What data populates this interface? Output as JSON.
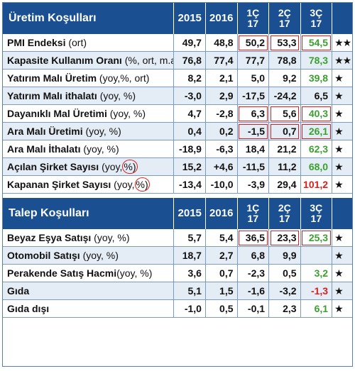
{
  "production": {
    "title": "Üretim Koşulları",
    "columns": [
      "2015",
      "2016",
      "1Ç\n17",
      "2Ç\n17",
      "3Ç\n17"
    ],
    "rows": [
      {
        "name": "PMI Endeksi",
        "unit": " (ort)",
        "v": [
          "49,7",
          "48,8",
          "50,2",
          "53,3",
          "54,5"
        ],
        "stars": "★★",
        "boxed": [
          2,
          3,
          4
        ],
        "green": 4
      },
      {
        "name": "Kapasite Kullanım Oranı",
        "unit": " (%, ort, m.a.)",
        "v": [
          "76,8",
          "77,4",
          "77,7",
          "78,8",
          "78,3"
        ],
        "stars": "★★",
        "green": 4
      },
      {
        "name": "Yatırım Malı Üretim",
        "unit": " (yoy,%, ort)",
        "v": [
          "8,2",
          "2,1",
          "5,0",
          "9,2",
          "39,8"
        ],
        "stars": "★",
        "green": 4
      },
      {
        "name": "Yatırım Malı ithalatı",
        "unit": " (yoy, %)",
        "v": [
          "-3,0",
          "2,9",
          "-17,5",
          "-24,2",
          "6,5"
        ],
        "stars": "★"
      },
      {
        "name": "Dayanıklı Mal Üretimi",
        "unit": " (yoy, %)",
        "v": [
          "4,7",
          "-2,8",
          "6,3",
          "5,6",
          "40,3"
        ],
        "stars": "★",
        "boxed": [
          2,
          3,
          4
        ],
        "green": 4
      },
      {
        "name": "Ara Malı Üretimi",
        "unit": " (yoy, %)",
        "v": [
          "0,4",
          "0,2",
          "-1,5",
          "0,7",
          "26,1"
        ],
        "stars": "★",
        "boxed": [
          2,
          3,
          4
        ],
        "green": 4
      },
      {
        "name": "Ara Malı İthalatı",
        "unit": " (yoy, %)",
        "v": [
          "-18,9",
          "-6,3",
          "18,4",
          "21,2",
          "62,3"
        ],
        "stars": "★",
        "green": 4
      },
      {
        "name": "Açılan Şirket Sayısı",
        "unit": " (yoy,",
        "circled": "%)",
        "v": [
          "15,2",
          "+4,6",
          "-11,5",
          "11,2",
          "68,0"
        ],
        "stars": "★",
        "green": 4
      },
      {
        "name": "Kapanan Şirket Sayısı",
        "unit": " (yoy,",
        "circled": "%)",
        "v": [
          "-13,4",
          "-10,0",
          "-3,9",
          "29,4",
          "101,2"
        ],
        "stars": "★",
        "red": 4
      }
    ]
  },
  "demand": {
    "title": "Talep Koşulları",
    "columns": [
      "2015",
      "2016",
      "1Ç\n17",
      "2Ç\n17",
      "3Ç\n17"
    ],
    "rows": [
      {
        "name": "Beyaz Eşya Satışı",
        "unit": " (yoy, %)",
        "v": [
          "5,7",
          "5,4",
          "36,5",
          "23,3",
          "25,3"
        ],
        "stars": "★",
        "boxed": [
          2,
          3,
          4
        ],
        "green": 4
      },
      {
        "name": "Otomobil Satışı",
        "unit": " (yoy, %)",
        "v": [
          "18,7",
          "2,7",
          "6,8",
          "9,9",
          ""
        ],
        "stars": "★"
      },
      {
        "name": "Perakende Satış Hacmi",
        "unit": "(yoy, %)",
        "v": [
          "3,6",
          "0,7",
          "-2,3",
          "0,5",
          "3,2"
        ],
        "stars": "★",
        "green": 4
      },
      {
        "name": "Gıda",
        "unit": "",
        "v": [
          "5,1",
          "1,5",
          "-1,6",
          "-3,2",
          "-1,3"
        ],
        "stars": "★",
        "red": 4
      },
      {
        "name": "Gıda dışı",
        "unit": "",
        "v": [
          "-1,0",
          "0,5",
          "-0,1",
          "2,3",
          "6,1"
        ],
        "stars": "★",
        "green": 4
      }
    ]
  },
  "colors": {
    "header": "#1a4f91",
    "band": "#e4ecf6",
    "green": "#3aa02e",
    "red": "#d81e1e",
    "highlight": "#d62020"
  }
}
